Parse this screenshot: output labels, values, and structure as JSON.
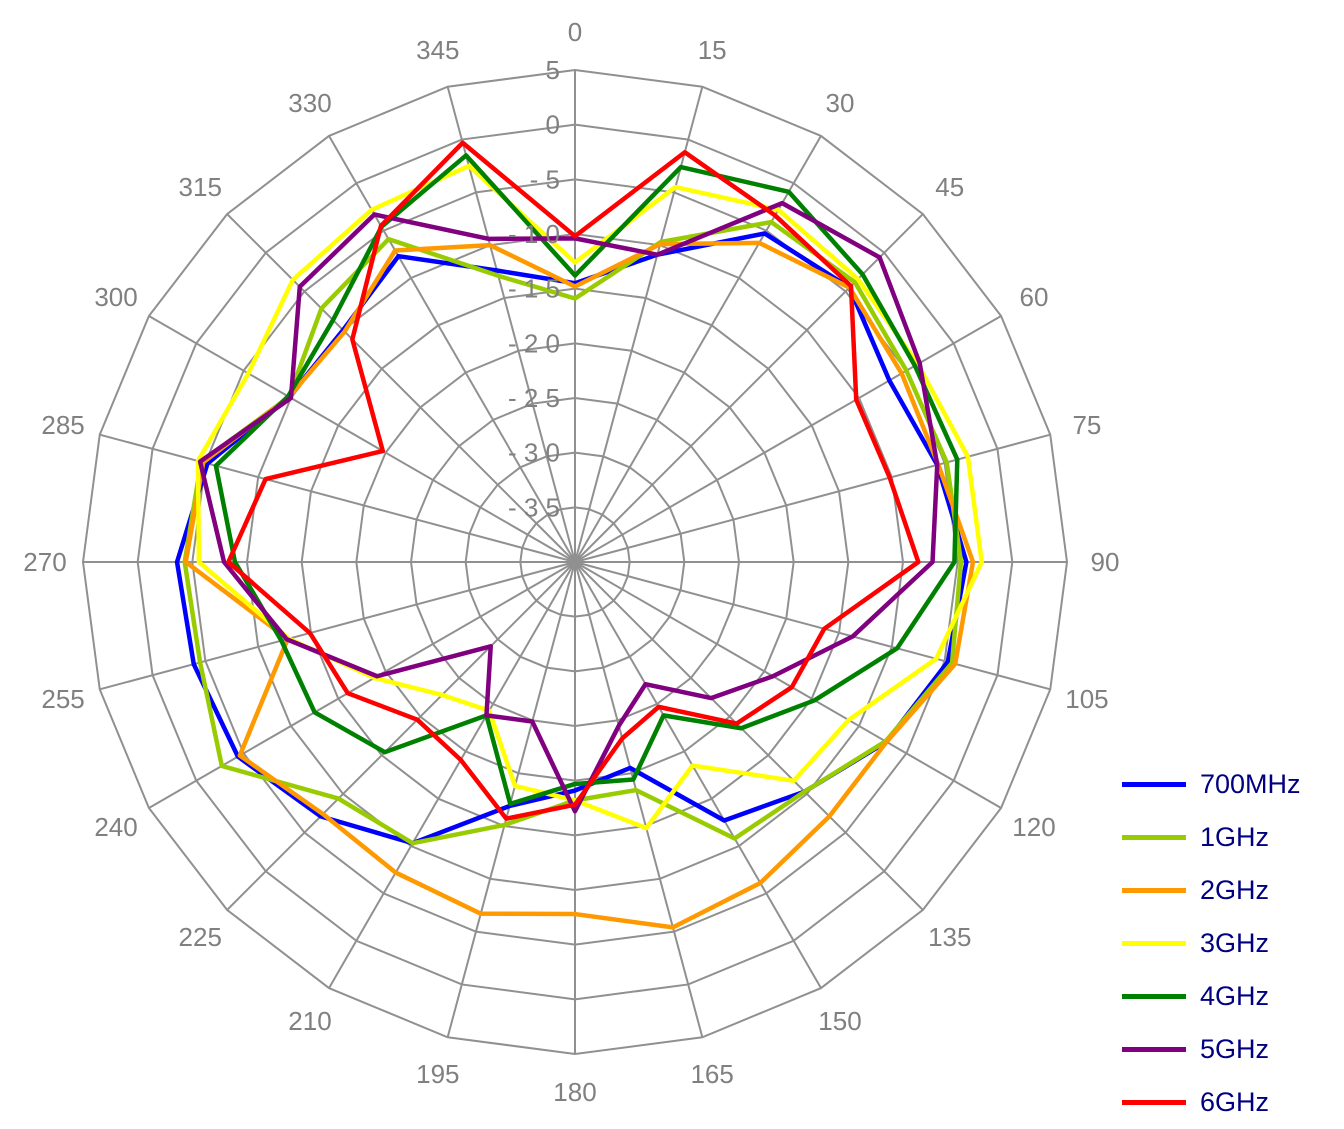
{
  "chart_data": {
    "type": "radar",
    "angles": [
      0,
      15,
      30,
      45,
      60,
      75,
      90,
      105,
      120,
      135,
      150,
      165,
      180,
      195,
      210,
      225,
      240,
      255,
      270,
      285,
      300,
      315,
      330,
      345
    ],
    "angle_labels": [
      "0",
      "15",
      "30",
      "45",
      "60",
      "75",
      "90",
      "105",
      "120",
      "135",
      "150",
      "165",
      "180",
      "195",
      "210",
      "225",
      "240",
      "255",
      "270",
      "285",
      "300",
      "315",
      "330",
      "345"
    ],
    "radial_ticks": [
      -35,
      -30,
      -25,
      -20,
      -15,
      -10,
      -5,
      0,
      5
    ],
    "radial_tick_labels": [
      "- 3 5",
      "- 3 0",
      "- 2 5",
      "- 2 0",
      "- 1 5",
      "- 1 0",
      "- 5",
      "0",
      "5"
    ],
    "rmin": -40,
    "rmax": 5,
    "grid": true,
    "legend_position": "bottom-right",
    "series": [
      {
        "name": "700MHz",
        "color": "#0000FF",
        "values": [
          -14.5,
          -10.9,
          -5.3,
          -4.5,
          -6.8,
          -5.7,
          -4.2,
          -4.7,
          -7.1,
          -10.3,
          -12.7,
          -20.5,
          -19.1,
          -16.9,
          -10.3,
          -7.1,
          -4.4,
          -3.9,
          -3.6,
          -5.2,
          -9.8,
          -10.0,
          -7.7,
          -12.4
        ]
      },
      {
        "name": "1GHz",
        "color": "#99CC00",
        "values": [
          -15.9,
          -9.7,
          -4.1,
          -3.8,
          -5.0,
          -4.8,
          -4.7,
          -4.3,
          -7.2,
          -10.3,
          -10.8,
          -18.4,
          -18.2,
          -15.1,
          -10.3,
          -9.4,
          -2.7,
          -4.5,
          -4.3,
          -4.6,
          -9.8,
          -7.2,
          -5.9,
          -12.9
        ]
      },
      {
        "name": "2GHz",
        "color": "#FF9900",
        "values": [
          -14.8,
          -9.9,
          -6.3,
          -4.5,
          -5.5,
          -5.6,
          -3.6,
          -4.0,
          -7.1,
          -7.1,
          -6.1,
          -5.4,
          -7.8,
          -6.7,
          -7.2,
          -7.4,
          -4.6,
          -12.8,
          -4.4,
          -4.8,
          -9.8,
          -10.2,
          -7.1,
          -10.0
        ]
      },
      {
        "name": "3GHz",
        "color": "#FFFF00",
        "values": [
          -12.6,
          -4.5,
          -2.8,
          -3.4,
          -3.8,
          -2.8,
          -2.8,
          -5.8,
          -11.1,
          -11.7,
          -18.5,
          -14.8,
          -18.2,
          -18.8,
          -24.3,
          -22.8,
          -18.8,
          -12.9,
          -5.6,
          -4.3,
          -5.5,
          -3.5,
          -2.8,
          -2.5
        ]
      },
      {
        "name": "4GHz",
        "color": "#008000",
        "values": [
          -13.8,
          -2.6,
          -0.9,
          -2.8,
          -4.1,
          -3.8,
          -5.3,
          -9.5,
          -14.7,
          -18.5,
          -23.8,
          -19.4,
          -19.7,
          -17.1,
          -23.8,
          -15.4,
          -12.5,
          -12.2,
          -8.9,
          -6.0,
          -9.7,
          -8.7,
          -4.6,
          -1.5
        ]
      },
      {
        "name": "5GHz",
        "color": "#800080",
        "values": [
          -10.4,
          -10.9,
          -2.1,
          -0.6,
          -3.6,
          -5.7,
          -7.3,
          -13.7,
          -19.1,
          -22.4,
          -27.1,
          -24.5,
          -17.2,
          -24.9,
          -23.8,
          -29.1,
          -19.1,
          -12.7,
          -7.9,
          -4.5,
          -10.0,
          -4.4,
          -3.3,
          -9.4
        ]
      },
      {
        "name": "6GHz",
        "color": "#FF0000",
        "values": [
          -10.2,
          -1.2,
          -3.4,
          -4.3,
          -10.3,
          -10.2,
          -8.6,
          -16.4,
          -17.1,
          -19.1,
          -24.7,
          -23.3,
          -17.8,
          -15.7,
          -19.1,
          -19.6,
          -16.0,
          -14.9,
          -8.3,
          -10.7,
          -19.7,
          -11.2,
          -4.5,
          -0.3
        ]
      }
    ]
  }
}
